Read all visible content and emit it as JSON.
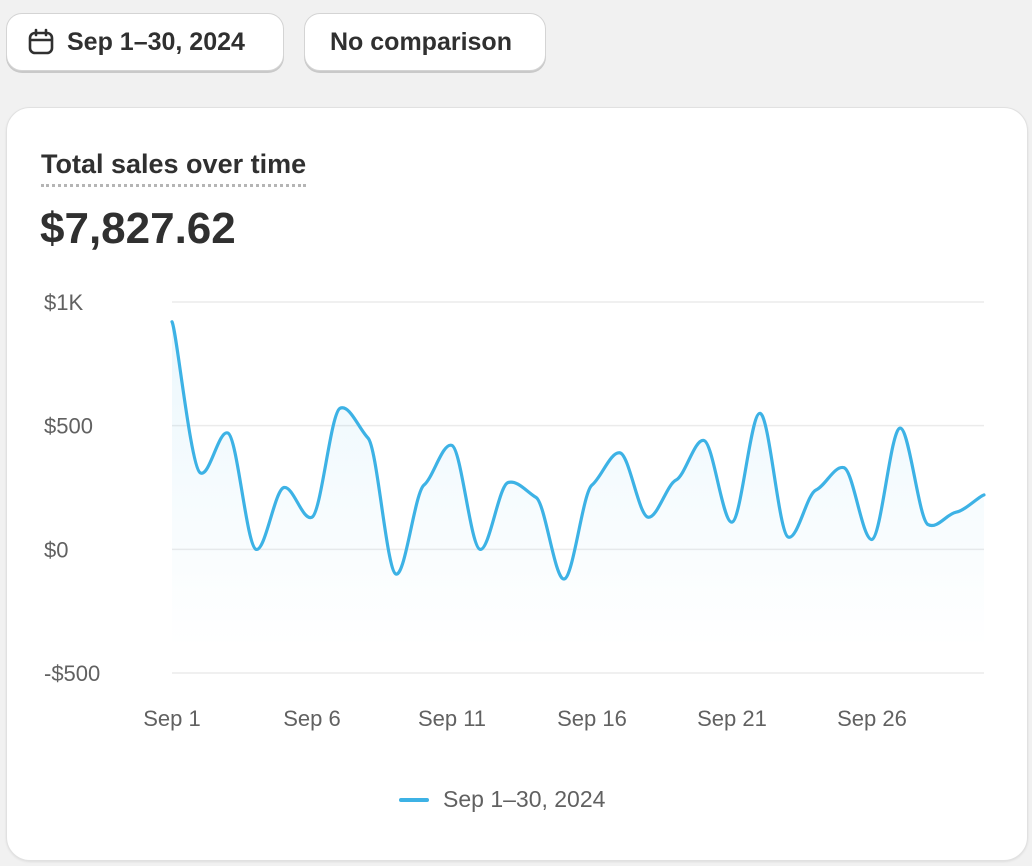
{
  "toolbar": {
    "date_range_label": "Sep 1–30, 2024",
    "comparison_label": "No comparison",
    "date_icon": "calendar-icon"
  },
  "card": {
    "title": "Total sales over time",
    "total_value": "$7,827.62"
  },
  "colors": {
    "line": "#3db2e5",
    "gridline": "#ebebeb",
    "tick_text": "#616161"
  },
  "chart_data": {
    "type": "line",
    "title": "Total sales over time",
    "xlabel": "",
    "ylabel": "",
    "x": [
      1,
      2,
      3,
      4,
      5,
      6,
      7,
      8,
      9,
      10,
      11,
      12,
      13,
      14,
      15,
      16,
      17,
      18,
      19,
      20,
      21,
      22,
      23,
      24,
      25,
      26,
      27,
      28,
      29,
      30
    ],
    "x_tick_labels": [
      {
        "x": 1,
        "label": "Sep 1"
      },
      {
        "x": 6,
        "label": "Sep 6"
      },
      {
        "x": 11,
        "label": "Sep 11"
      },
      {
        "x": 16,
        "label": "Sep 16"
      },
      {
        "x": 21,
        "label": "Sep 21"
      },
      {
        "x": 26,
        "label": "Sep 26"
      }
    ],
    "y_ticks": [
      {
        "value": 1000,
        "label": "$1K"
      },
      {
        "value": 500,
        "label": "$500"
      },
      {
        "value": 0,
        "label": "$0"
      },
      {
        "value": -500,
        "label": "-$500"
      }
    ],
    "ylim": [
      -500,
      1000
    ],
    "xlim": [
      1,
      30
    ],
    "grid": true,
    "legend_position": "bottom-center",
    "series": [
      {
        "name": "Sep 1–30, 2024",
        "values": [
          920,
          310,
          470,
          0,
          250,
          130,
          570,
          450,
          -100,
          260,
          420,
          0,
          270,
          210,
          -120,
          260,
          390,
          130,
          280,
          440,
          110,
          550,
          50,
          240,
          330,
          40,
          490,
          100,
          150,
          220
        ]
      }
    ]
  }
}
